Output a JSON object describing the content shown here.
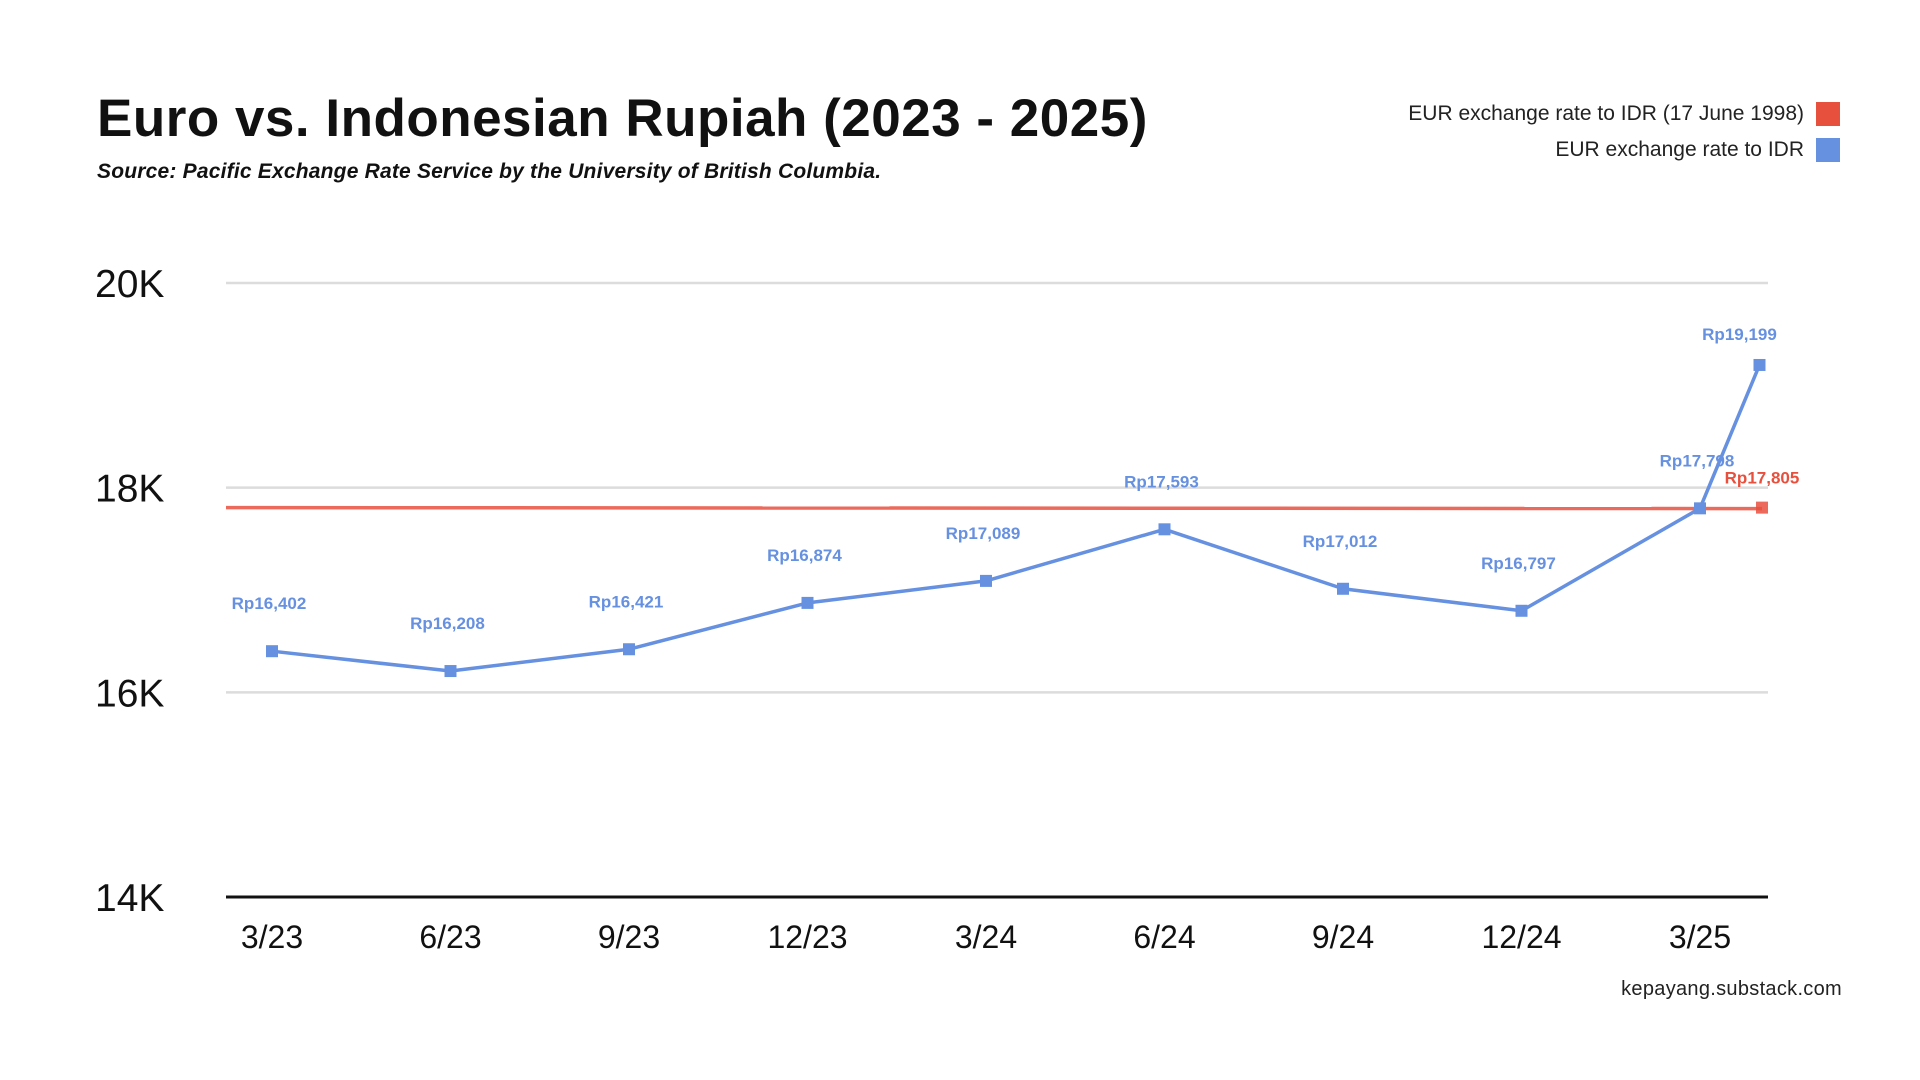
{
  "header": {
    "title": "Euro vs. Indonesian Rupiah (2023 - 2025)",
    "subtitle": "Source: Pacific Exchange Rate Service by the University of British Columbia."
  },
  "legend": [
    {
      "label": "EUR exchange rate to IDR (17 June 1998)",
      "color": "#e8503e"
    },
    {
      "label": "EUR exchange rate to IDR",
      "color": "#6690e0"
    }
  ],
  "credit": "kepayang.substack.com",
  "chart_data": {
    "type": "line",
    "title": "Euro vs. Indonesian Rupiah (2023 - 2025)",
    "xlabel": "",
    "ylabel": "",
    "ylim": [
      14000,
      20000
    ],
    "y_ticks": [
      {
        "value": 14000,
        "label": "14K"
      },
      {
        "value": 16000,
        "label": "16K"
      },
      {
        "value": 18000,
        "label": "18K"
      },
      {
        "value": 20000,
        "label": "20K"
      }
    ],
    "x_ticks": [
      "3/23",
      "6/23",
      "9/23",
      "12/23",
      "3/24",
      "6/24",
      "9/24",
      "12/24",
      "3/25"
    ],
    "grid": true,
    "legend_position": "top-right",
    "series": [
      {
        "name": "EUR exchange rate to IDR",
        "color": "#6690e0",
        "points": [
          {
            "x": "3/23",
            "y": 16402,
            "label": "Rp16,402"
          },
          {
            "x": "6/23",
            "y": 16208,
            "label": "Rp16,208"
          },
          {
            "x": "9/23",
            "y": 16421,
            "label": "Rp16,421"
          },
          {
            "x": "12/23",
            "y": 16874,
            "label": "Rp16,874"
          },
          {
            "x": "3/24",
            "y": 17089,
            "label": "Rp17,089"
          },
          {
            "x": "6/24",
            "y": 17593,
            "label": "Rp17,593"
          },
          {
            "x": "9/24",
            "y": 17012,
            "label": "Rp17,012"
          },
          {
            "x": "12/24",
            "y": 16797,
            "label": "Rp16,797"
          },
          {
            "x": "3/25",
            "y": 17798,
            "label": "Rp17,798"
          },
          {
            "x": "4/25",
            "y": 19199,
            "label": "Rp19,199"
          }
        ]
      },
      {
        "name": "EUR exchange rate to IDR (17 June 1998)",
        "color": "#e8503e",
        "constant": 17805,
        "label": "Rp17,805"
      }
    ]
  }
}
